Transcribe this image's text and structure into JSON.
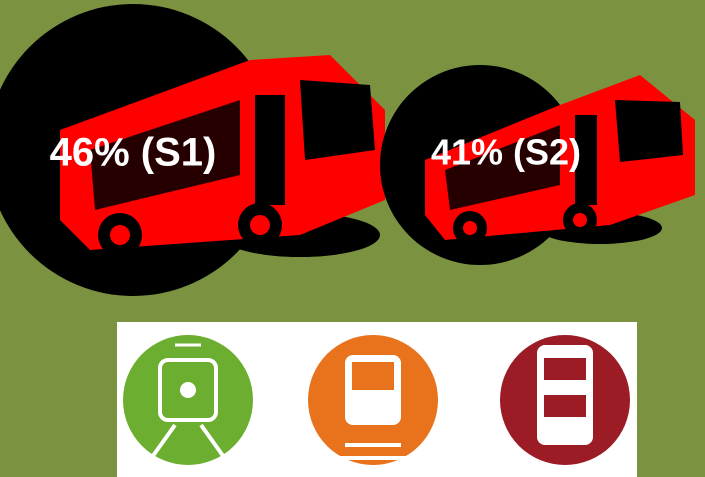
{
  "stats": [
    {
      "label": "46% (S1)"
    },
    {
      "label": "41% (S2)"
    }
  ]
}
